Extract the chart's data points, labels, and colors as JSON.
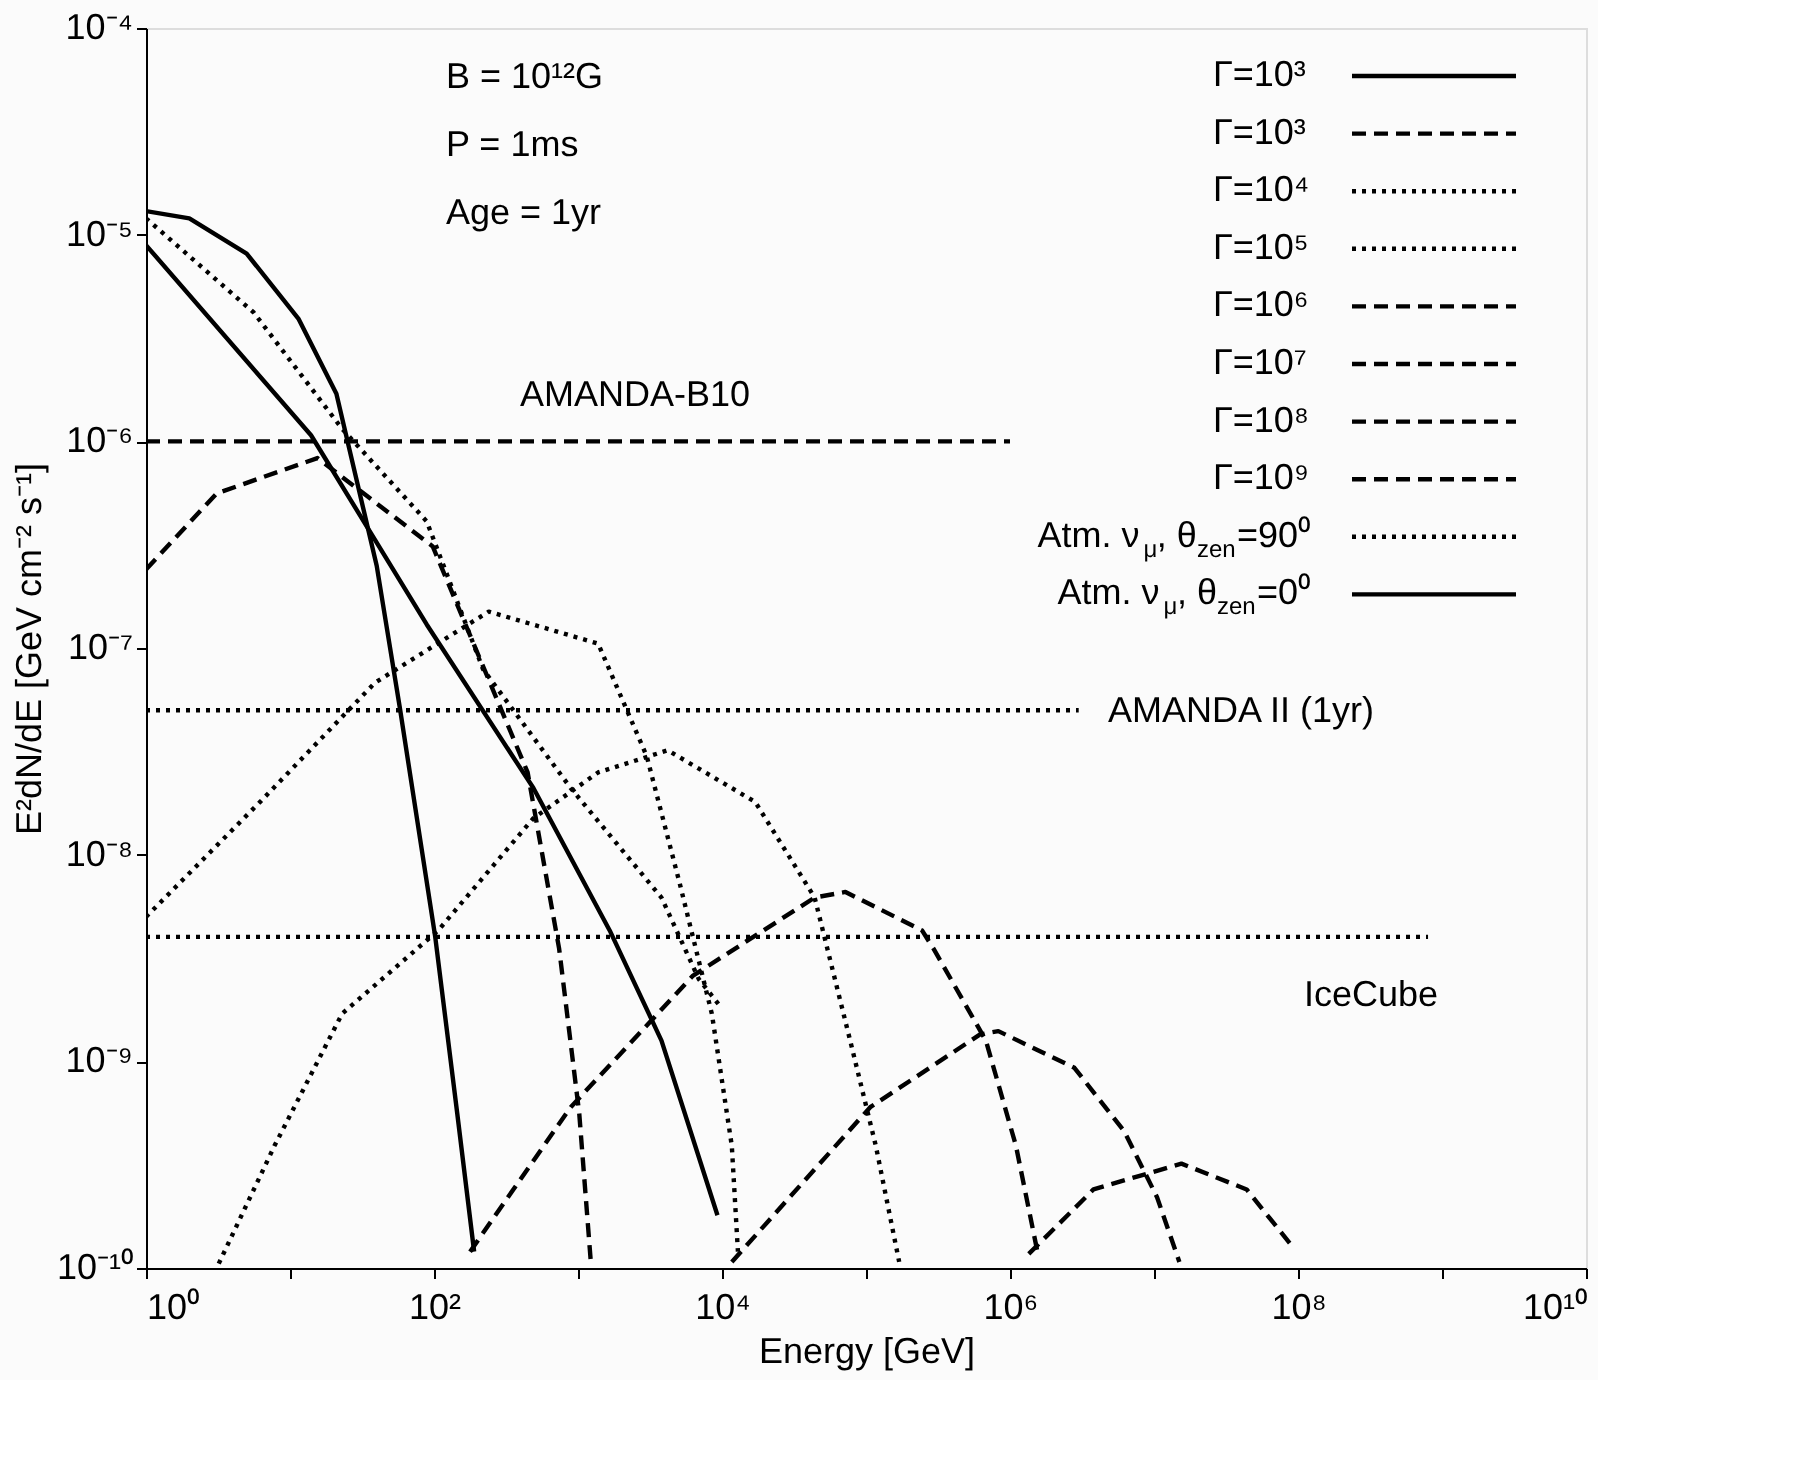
{
  "chart_data": {
    "type": "line",
    "xlabel": "Energy [GeV]",
    "ylabel": "E²dN/dE [GeV cm⁻² s⁻¹]",
    "xlim": [
      1,
      10000000000
    ],
    "ylim": [
      1e-10,
      0.0001
    ],
    "log": "xy",
    "grid": false,
    "legend": "top right",
    "xticks": [
      {
        "value": 1,
        "label": "10⁰"
      },
      {
        "value": 10,
        "label": null
      },
      {
        "value": 100,
        "label": "10²"
      },
      {
        "value": 1000,
        "label": null
      },
      {
        "value": 10000,
        "label": "10⁴"
      },
      {
        "value": 100000,
        "label": null
      },
      {
        "value": 1000000,
        "label": "10⁶"
      },
      {
        "value": 10000000,
        "label": null
      },
      {
        "value": 100000000,
        "label": "10⁸"
      },
      {
        "value": 1000000000,
        "label": null
      },
      {
        "value": 10000000000,
        "label": "10¹⁰"
      }
    ],
    "yticks": [
      {
        "value": 1e-10,
        "label": "10⁻¹⁰"
      },
      {
        "value": 1e-09,
        "label": "10⁻⁹"
      },
      {
        "value": 1e-08,
        "label": "10⁻⁸"
      },
      {
        "value": 1e-07,
        "label": "10⁻⁷"
      },
      {
        "value": 1e-06,
        "label": "10⁻⁶"
      },
      {
        "value": 1e-05,
        "label": "10⁻⁵"
      },
      {
        "value": 0.0001,
        "label": "10⁻⁴"
      }
    ],
    "annotations": [
      "B = 10¹²G",
      "P = 1ms",
      "Age = 1yr",
      "AMANDA-B10",
      "AMANDA II (1yr)",
      "IceCube"
    ],
    "series": [
      {
        "name": "Γ=10³",
        "color": "#000000",
        "line_style": "solid",
        "x": [
          1,
          2,
          5,
          11.5,
          21,
          40,
          58,
          102,
          145,
          190
        ],
        "values": [
          1.3e-05,
          1.2e-05,
          8.1e-06,
          3.9e-06,
          1.7e-06,
          2.5e-07,
          5.1e-08,
          4e-09,
          5.6e-10,
          1.2e-10
        ]
      },
      {
        "name": "Γ=10³",
        "color": "#000000",
        "line_style": "dashed",
        "x": [
          1,
          3.1,
          15.5,
          98,
          447,
          740,
          1020,
          1230
        ],
        "values": [
          2.4e-07,
          5.6e-07,
          8.3e-07,
          3.1e-07,
          2.5e-08,
          3.5e-09,
          5.6e-10,
          1.05e-10
        ]
      },
      {
        "name": "Γ=10⁴",
        "color": "#000000",
        "line_style": "dotted",
        "x": [
          1,
          6.2,
          39,
          240,
          1380,
          3000,
          5100,
          8500,
          11700,
          12900
        ],
        "values": [
          5e-09,
          1.8e-08,
          6.8e-08,
          1.5e-07,
          1.05e-07,
          3e-08,
          7.2e-09,
          1.7e-09,
          3.9e-10,
          1.2e-10
        ]
      },
      {
        "name": "Γ=10⁵",
        "color": "#000000",
        "line_style": "dotted",
        "x": [
          3.2,
          7.8,
          23,
          107,
          490,
          1380,
          4200,
          17000,
          44000,
          79000,
          117000,
          170000
        ],
        "values": [
          1.05e-10,
          3.9e-10,
          1.7e-09,
          4.3e-09,
          1.5e-08,
          2.5e-08,
          3.2e-08,
          1.8e-08,
          6.2e-09,
          1.2e-09,
          3.9e-10,
          1.07e-10
        ]
      },
      {
        "name": "Γ=10⁶",
        "color": "#000000",
        "line_style": "dashed",
        "x": [
          178,
          890,
          6300,
          44000,
          72000,
          245000,
          295000,
          680000,
          1100000,
          1550000
        ],
        "values": [
          1.2e-10,
          6e-10,
          2.6e-09,
          6.2e-09,
          6.6e-09,
          4.3e-09,
          3.5e-09,
          1.26e-09,
          3.9e-10,
          1.2e-10
        ]
      },
      {
        "name": "Γ=10⁷",
        "color": "#000000",
        "line_style": "dashed",
        "x": [
          11700,
          107000,
          620000,
          830000,
          2800000,
          6200000,
          10500000,
          15000000
        ],
        "values": [
          1.07e-10,
          6e-10,
          1.35e-09,
          1.4e-09,
          9.3e-10,
          4.6e-10,
          2.2e-10,
          1.07e-10
        ]
      },
      {
        "name": "Γ=10⁸",
        "color": "#000000",
        "line_style": "dashed",
        "x": [
          1350000,
          3800000,
          15500000,
          44000000,
          89000000
        ],
        "values": [
          1.17e-10,
          2.4e-10,
          3.2e-10,
          2.4e-10,
          1.3e-10
        ]
      },
      {
        "name": "Γ=10⁹",
        "color": "#000000",
        "line_style": "dashed"
      },
      {
        "name": "Atm. ν$_{μ}$, θ$_{zen}$=90⁰",
        "color": "#000000",
        "line_style": "dotted",
        "x": [
          1,
          5.6,
          23,
          89,
          219,
          890,
          3800,
          6900,
          10000
        ],
        "values": [
          1.2e-05,
          4.2e-06,
          1.15e-06,
          4.1e-07,
          7.9e-08,
          2.1e-08,
          6.2e-09,
          2.5e-09,
          1.8e-09
        ]
      },
      {
        "name": "Atm. ν$_{μ}$, θ$_{zen}$=0⁰",
        "color": "#000000",
        "line_style": "solid",
        "x": [
          1,
          14,
          89,
          490,
          1660,
          3800,
          9300
        ],
        "values": [
          8.9e-06,
          1.07e-06,
          1.3e-07,
          2.1e-08,
          4.3e-09,
          1.26e-09,
          1.8e-10
        ]
      },
      {
        "color": "#000000",
        "line_style": "dashed",
        "x": [
          1,
          1000000
        ],
        "values": [
          1e-06,
          1e-06
        ]
      },
      {
        "color": "#000000",
        "line_style": "dotted",
        "x": [
          1,
          3000000
        ],
        "values": [
          5e-08,
          5e-08
        ]
      },
      {
        "color": "#000000",
        "line_style": "dotted",
        "x": [
          1,
          800000000
        ],
        "values": [
          4e-09,
          4e-09
        ]
      }
    ]
  }
}
